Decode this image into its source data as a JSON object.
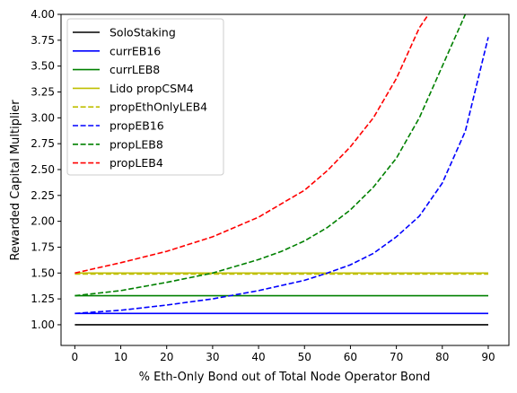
{
  "chart_data": {
    "type": "line",
    "title": "",
    "xlabel": "% Eth-Only Bond out of Total Node Operator Bond",
    "ylabel": "Rewarded Capital Multiplier",
    "xlim": [
      -3,
      94.5
    ],
    "ylim": [
      0.8,
      4.0
    ],
    "x_ticks": [
      0,
      10,
      20,
      30,
      40,
      50,
      60,
      70,
      80,
      90
    ],
    "y_ticks": [
      1.0,
      1.25,
      1.5,
      1.75,
      2.0,
      2.25,
      2.5,
      2.75,
      3.0,
      3.25,
      3.5,
      3.75,
      4.0
    ],
    "x_tick_labels": [
      "0",
      "10",
      "20",
      "30",
      "40",
      "50",
      "60",
      "70",
      "80",
      "90"
    ],
    "y_tick_labels": [
      "1.00",
      "1.25",
      "1.50",
      "1.75",
      "2.00",
      "2.25",
      "2.50",
      "2.75",
      "3.00",
      "3.25",
      "3.50",
      "3.75",
      "4.00"
    ],
    "grid": false,
    "legend_position": "top-left",
    "series": [
      {
        "name": "SoloStaking",
        "style": "solid",
        "color": "#000000",
        "x": [
          0,
          90
        ],
        "y": [
          1.0,
          1.0
        ]
      },
      {
        "name": "currEB16",
        "style": "solid",
        "color": "#0000ff",
        "x": [
          0,
          90
        ],
        "y": [
          1.11,
          1.11
        ]
      },
      {
        "name": "currLEB8",
        "style": "solid",
        "color": "#008000",
        "x": [
          0,
          90
        ],
        "y": [
          1.28,
          1.28
        ]
      },
      {
        "name": "Lido propCSM4",
        "style": "solid",
        "color": "#bfbf00",
        "x": [
          0,
          90
        ],
        "y": [
          1.5,
          1.5
        ]
      },
      {
        "name": "propEthOnlyLEB4",
        "style": "dashed",
        "color": "#bfbf00",
        "x": [
          0,
          90
        ],
        "y": [
          1.49,
          1.49
        ]
      },
      {
        "name": "propEB16",
        "style": "dashed",
        "color": "#0000ff",
        "x": [
          0,
          10,
          20,
          30,
          40,
          50,
          55,
          60,
          65,
          70,
          75,
          80,
          85,
          90
        ],
        "y": [
          1.11,
          1.14,
          1.19,
          1.25,
          1.33,
          1.43,
          1.5,
          1.58,
          1.69,
          1.85,
          2.05,
          2.37,
          2.87,
          3.78
        ]
      },
      {
        "name": "propLEB8",
        "style": "dashed",
        "color": "#008000",
        "x": [
          0,
          10,
          20,
          30,
          40,
          45,
          50,
          55,
          60,
          65,
          70,
          75,
          80,
          85
        ],
        "y": [
          1.28,
          1.33,
          1.41,
          1.5,
          1.63,
          1.71,
          1.81,
          1.94,
          2.11,
          2.33,
          2.61,
          3.0,
          3.5,
          4.0
        ]
      },
      {
        "name": "propLEB4",
        "style": "dashed",
        "color": "#ff0000",
        "x": [
          0,
          10,
          20,
          30,
          40,
          50,
          55,
          60,
          65,
          70,
          75,
          77
        ],
        "y": [
          1.5,
          1.6,
          1.71,
          1.85,
          2.04,
          2.3,
          2.49,
          2.72,
          3.0,
          3.38,
          3.87,
          4.0
        ]
      }
    ]
  }
}
